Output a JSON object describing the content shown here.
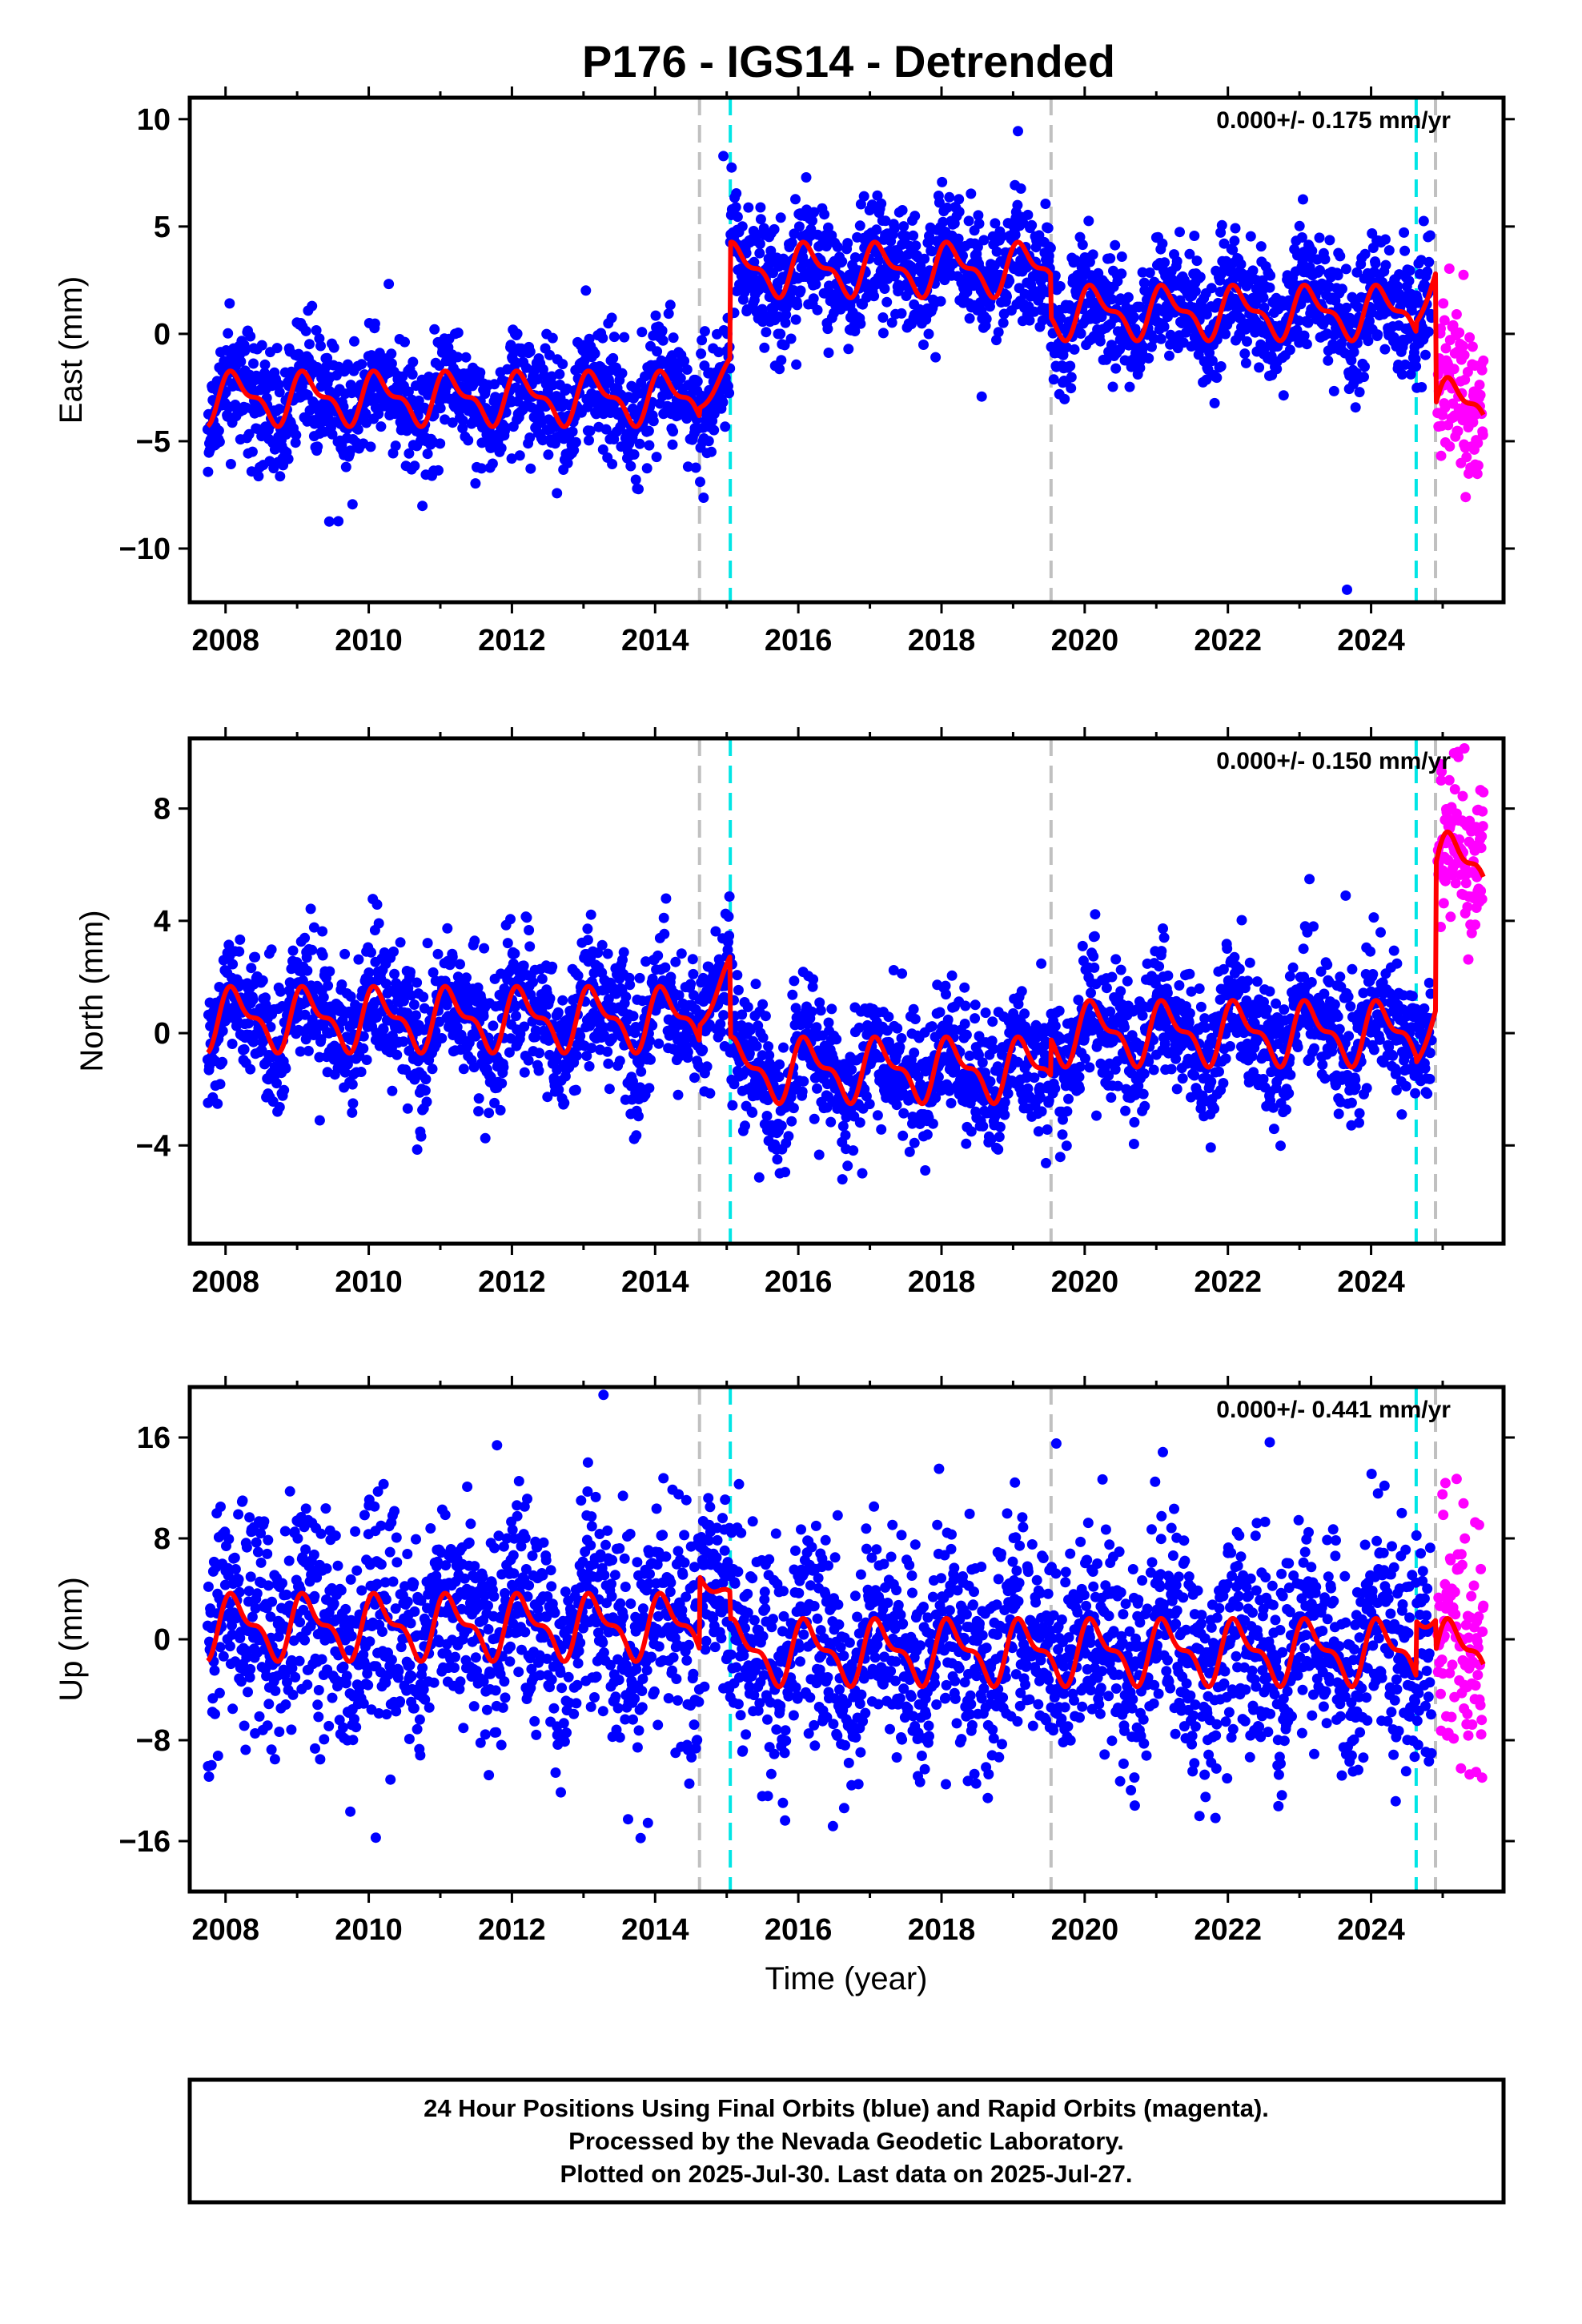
{
  "chart_data": {
    "type": "scatter",
    "title": "P176 - IGS14 - Detrended",
    "xlabel": "Time (year)",
    "xlim": [
      2007.5,
      2025.85
    ],
    "xticks": [
      2008,
      2010,
      2012,
      2014,
      2016,
      2018,
      2020,
      2022,
      2024
    ],
    "final_start": 2007.75,
    "final_end": 2024.85,
    "rapid_start": 2024.93,
    "rapid_end": 2025.57,
    "breaks": [
      {
        "year": 2014.62,
        "color": "#c0c0c0"
      },
      {
        "year": 2015.05,
        "color": "#00e5e5"
      },
      {
        "year": 2019.53,
        "color": "#c0c0c0"
      },
      {
        "year": 2024.63,
        "color": "#00e5e5"
      },
      {
        "year": 2024.9,
        "color": "#c0c0c0"
      }
    ],
    "colors": {
      "final_orbits": "#0000ff",
      "rapid_orbits": "#ff00ff",
      "model": "#ff0000",
      "frame": "#000000"
    },
    "grid": false,
    "panels": [
      {
        "name": "East",
        "ylabel": "East (mm)",
        "ylim": [
          -12.5,
          11
        ],
        "yticks": [
          10,
          5,
          0,
          -5,
          -10
        ],
        "rate_text": "0.000+/- 0.175 mm/yr",
        "noise": 1.4,
        "seasonal_amp": 1.2,
        "offsets": [
          {
            "start": 2007.75,
            "level": -3.0
          },
          {
            "start": 2015.05,
            "level": 3.0
          },
          {
            "start": 2019.53,
            "level": 1.0
          },
          {
            "start": 2024.9,
            "level": -3.3
          }
        ],
        "model_extra": [
          [
            2014.62,
            2015.05,
            -3.2,
            -1.5
          ],
          [
            2024.63,
            2024.9,
            0.8,
            2.8
          ]
        ]
      },
      {
        "name": "North",
        "ylabel": "North (mm)",
        "ylim": [
          -7.5,
          10.5
        ],
        "yticks": [
          8,
          4,
          0,
          -4
        ],
        "rate_text": "0.000+/- 0.150 mm/yr",
        "noise": 1.15,
        "seasonal_amp": 1.1,
        "offsets": [
          {
            "start": 2007.75,
            "level": 0.5
          },
          {
            "start": 2015.05,
            "level": -1.3
          },
          {
            "start": 2019.53,
            "level": 0.0
          },
          {
            "start": 2024.9,
            "level": 6.0
          }
        ],
        "model_extra": [
          [
            2014.62,
            2015.05,
            0.5,
            2.4
          ],
          [
            2024.63,
            2024.9,
            -0.8,
            0.8
          ]
        ]
      },
      {
        "name": "Up",
        "ylabel": "Up (mm)",
        "ylim": [
          -20,
          20
        ],
        "yticks": [
          16,
          8,
          0,
          -8,
          -16
        ],
        "rate_text": "0.000+/- 0.441 mm/yr",
        "noise": 4.3,
        "seasonal_amp": 2.5,
        "offsets": [
          {
            "start": 2007.75,
            "level": 1.0
          },
          {
            "start": 2015.05,
            "level": -1.0
          },
          {
            "start": 2019.53,
            "level": -1.0
          },
          {
            "start": 2024.9,
            "level": -1.0
          }
        ],
        "model_extra": [
          [
            2014.62,
            2015.05,
            5.5,
            3.0
          ],
          [
            2024.63,
            2024.9,
            2.0,
            1.5
          ]
        ]
      }
    ]
  },
  "footer": {
    "lines": [
      "24 Hour Positions Using Final Orbits (blue) and Rapid Orbits (magenta).",
      "Processed by the Nevada Geodetic Laboratory.",
      "Plotted on 2025-Jul-30. Last data on 2025-Jul-27."
    ]
  }
}
